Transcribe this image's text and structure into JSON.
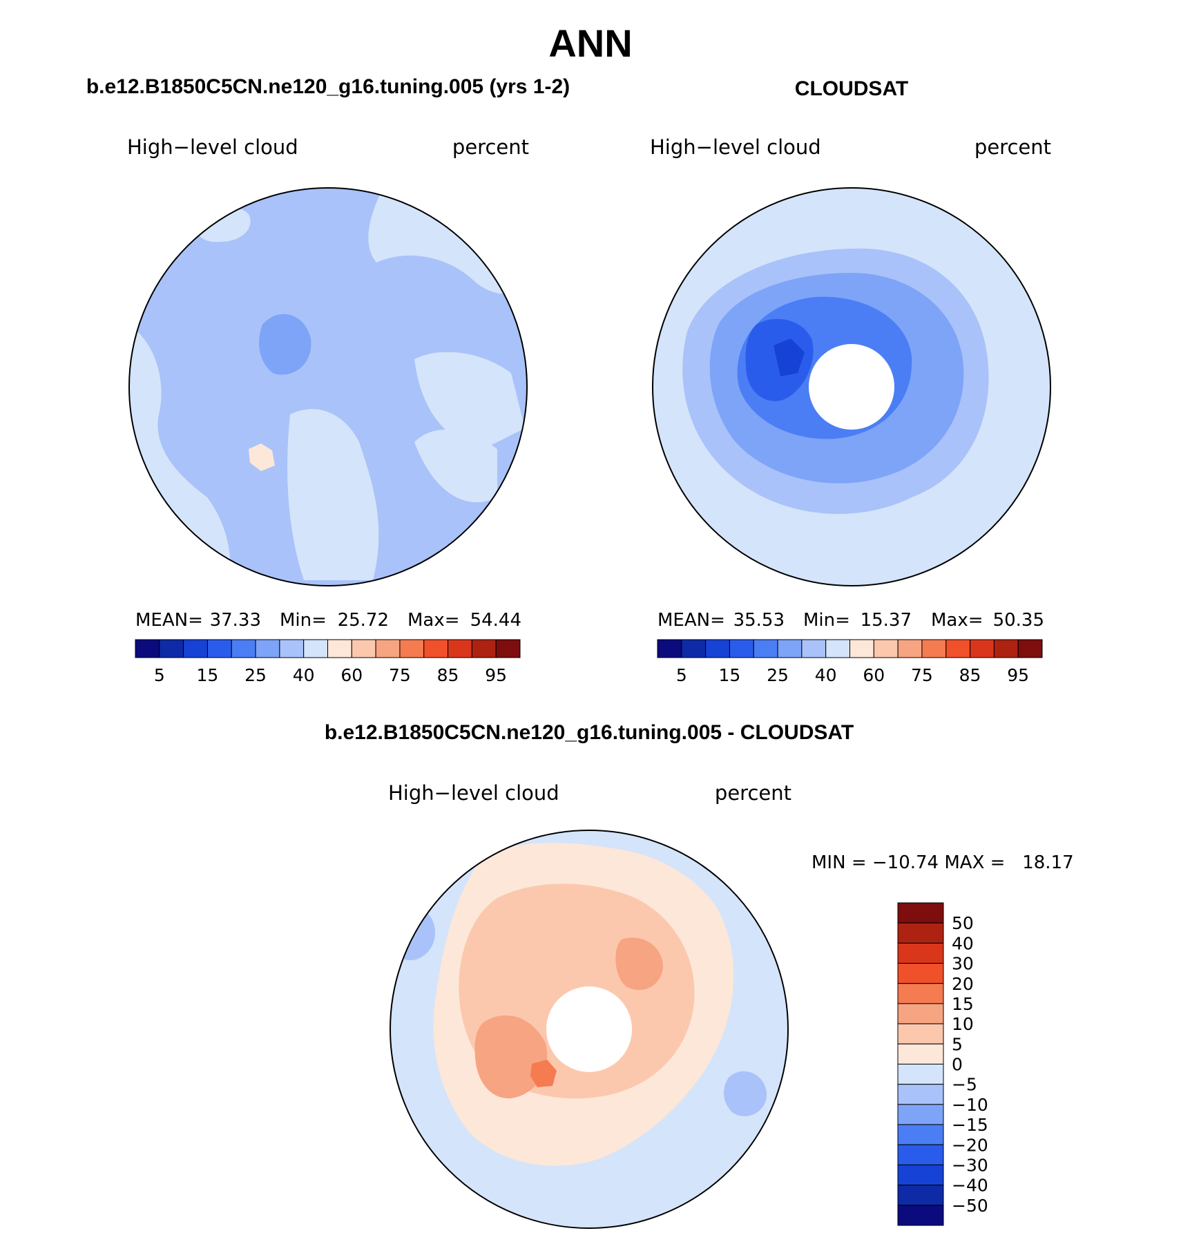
{
  "figure_title": "ANN",
  "colors": {
    "seq": [
      "#0b0b7e",
      "#0e2aa6",
      "#1742d6",
      "#2a5cec",
      "#4b7ef5",
      "#7ea4f8",
      "#a9c2f9",
      "#d4e4fa",
      "#fde7d9",
      "#fbc8ae",
      "#f7a482",
      "#f57b51",
      "#f0502a",
      "#d9361c",
      "#ae2212",
      "#7e0e0e"
    ],
    "diff_bottom_to_top": [
      "#0b0b7e",
      "#0e2aa6",
      "#1742d6",
      "#2a5cec",
      "#4b7ef5",
      "#7ea4f8",
      "#a9c2f9",
      "#d4e4fa",
      "#fde7d9",
      "#fbc8ae",
      "#f7a482",
      "#f57b51",
      "#f0502a",
      "#d9361c",
      "#ae2212",
      "#7e0e0e"
    ]
  },
  "panels": {
    "model": {
      "case_title": "b.e12.B1850C5CN.ne120_g16.tuning.005 (yrs 1-2)",
      "variable": "High−level cloud",
      "units": "percent",
      "stats": {
        "mean_label": "MEAN=",
        "mean": "37.33",
        "min_label": "Min=",
        "min": "25.72",
        "max_label": "Max=",
        "max": "54.44"
      },
      "colorbar_ticks": [
        "5",
        "15",
        "25",
        "40",
        "60",
        "75",
        "85",
        "95"
      ]
    },
    "obs": {
      "case_title": "CLOUDSAT",
      "variable": "High−level cloud",
      "units": "percent",
      "stats": {
        "mean_label": "MEAN=",
        "mean": "35.53",
        "min_label": "Min=",
        "min": "15.37",
        "max_label": "Max=",
        "max": "50.35"
      },
      "colorbar_ticks": [
        "5",
        "15",
        "25",
        "40",
        "60",
        "75",
        "85",
        "95"
      ]
    },
    "diff": {
      "case_title": "b.e12.B1850C5CN.ne120_g16.tuning.005 - CLOUDSAT",
      "variable": "High−level cloud",
      "units": "percent",
      "minmax_text": "MIN = −10.74 MAX =   18.17",
      "colorbar_ticks": [
        "50",
        "40",
        "30",
        "20",
        "15",
        "10",
        "5",
        "0",
        "−5",
        "−10",
        "−15",
        "−20",
        "−30",
        "−40",
        "−50"
      ]
    }
  }
}
